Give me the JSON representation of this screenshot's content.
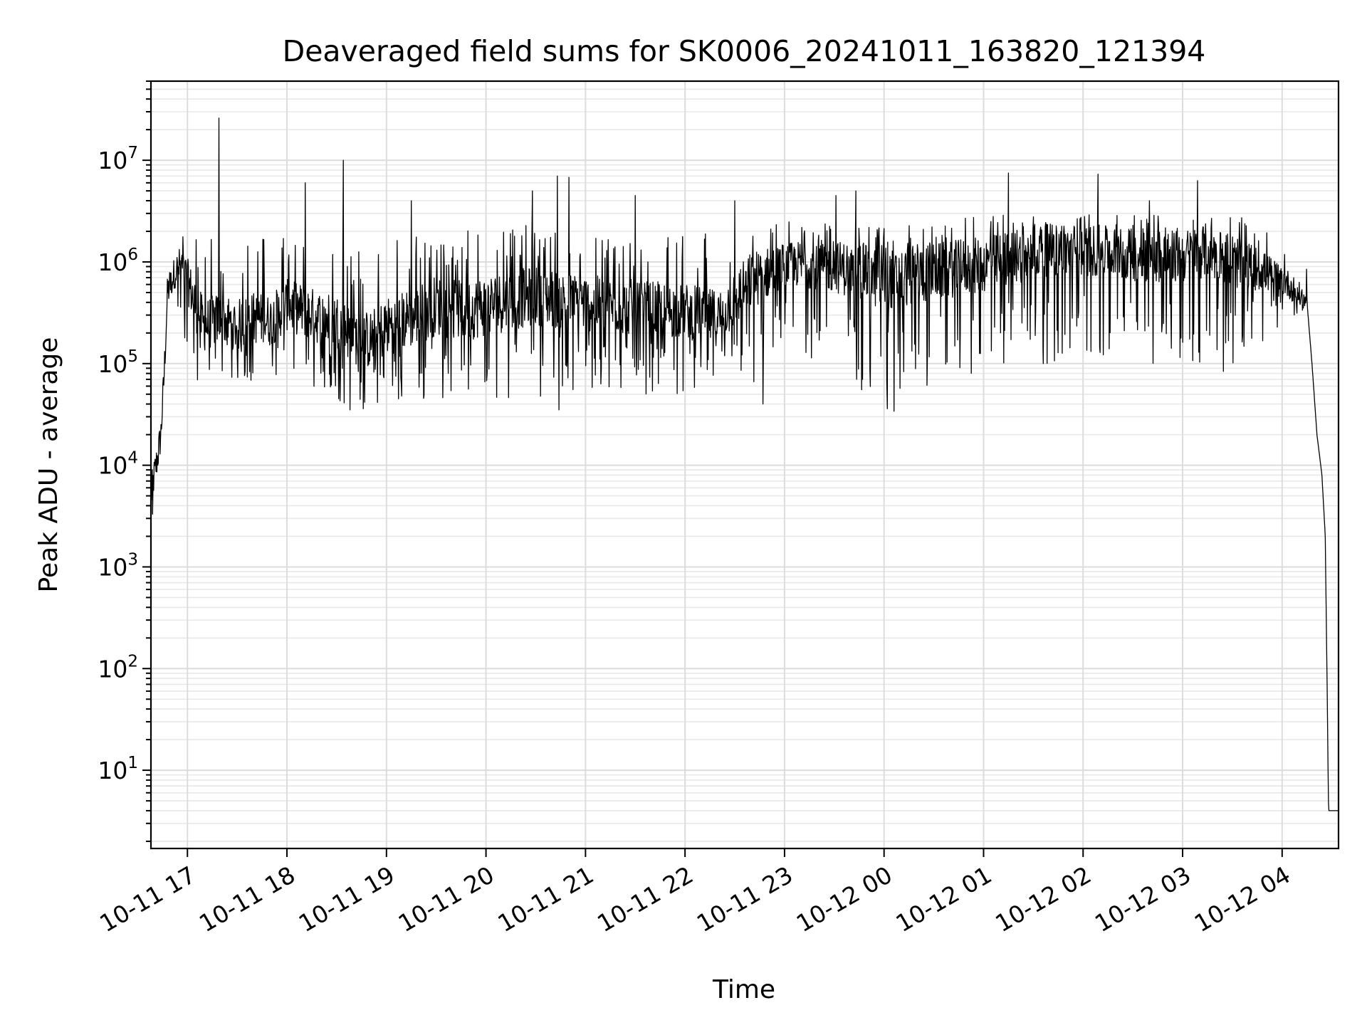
{
  "chart_data": {
    "type": "line",
    "title": "Deaveraged field sums for SK0006_20241011_163820_121394",
    "xlabel": "Time",
    "ylabel": "Peak ADU - average",
    "y_scale": "log",
    "grid": "on (major and minor)",
    "line_color": "#000000",
    "xlim": [
      "2024-10-11 16:38",
      "2024-10-12 04:34"
    ],
    "ylim": [
      1.7,
      60000000
    ],
    "x_ticks": [
      {
        "t": "2024-10-11 17:00",
        "label": "10-11 17"
      },
      {
        "t": "2024-10-11 18:00",
        "label": "10-11 18"
      },
      {
        "t": "2024-10-11 19:00",
        "label": "10-11 19"
      },
      {
        "t": "2024-10-11 20:00",
        "label": "10-11 20"
      },
      {
        "t": "2024-10-11 21:00",
        "label": "10-11 21"
      },
      {
        "t": "2024-10-11 22:00",
        "label": "10-11 22"
      },
      {
        "t": "2024-10-11 23:00",
        "label": "10-11 23"
      },
      {
        "t": "2024-10-12 00:00",
        "label": "10-12 00"
      },
      {
        "t": "2024-10-12 01:00",
        "label": "10-12 01"
      },
      {
        "t": "2024-10-12 02:00",
        "label": "10-12 02"
      },
      {
        "t": "2024-10-12 03:00",
        "label": "10-12 03"
      },
      {
        "t": "2024-10-12 04:00",
        "label": "10-12 04"
      }
    ],
    "y_ticks": [
      {
        "value": 10,
        "base": "10",
        "exp": "1"
      },
      {
        "value": 100,
        "base": "10",
        "exp": "2"
      },
      {
        "value": 1000,
        "base": "10",
        "exp": "3"
      },
      {
        "value": 10000,
        "base": "10",
        "exp": "4"
      },
      {
        "value": 100000,
        "base": "10",
        "exp": "5"
      },
      {
        "value": 1000000,
        "base": "10",
        "exp": "6"
      },
      {
        "value": 10000000,
        "base": "10",
        "exp": "7"
      }
    ],
    "series": [
      {
        "points": [
          [
            "2024-10-11 16:38",
            5000
          ],
          [
            "2024-10-11 16:40",
            8000
          ],
          [
            "2024-10-11 16:42",
            12000
          ],
          [
            "2024-10-11 16:44",
            20000
          ],
          [
            "2024-10-11 16:46",
            80000
          ],
          [
            "2024-10-11 16:48",
            500000
          ],
          [
            "2024-10-11 16:52",
            800000
          ],
          [
            "2024-10-11 16:56",
            1000000
          ],
          [
            "2024-10-11 17:00",
            700000
          ],
          [
            "2024-10-11 17:05",
            400000
          ],
          [
            "2024-10-11 17:10",
            250000
          ],
          [
            "2024-10-11 17:20",
            300000
          ],
          [
            "2024-10-11 17:30",
            250000
          ],
          [
            "2024-10-11 17:40",
            300000
          ],
          [
            "2024-10-11 17:50",
            280000
          ],
          [
            "2024-10-11 18:00",
            400000
          ],
          [
            "2024-10-11 18:10",
            350000
          ],
          [
            "2024-10-11 18:20",
            300000
          ],
          [
            "2024-10-11 18:30",
            280000
          ],
          [
            "2024-10-11 18:40",
            200000
          ],
          [
            "2024-10-11 18:50",
            180000
          ],
          [
            "2024-10-11 19:00",
            250000
          ],
          [
            "2024-10-11 19:15",
            300000
          ],
          [
            "2024-10-11 19:30",
            400000
          ],
          [
            "2024-10-11 19:45",
            350000
          ],
          [
            "2024-10-11 20:00",
            400000
          ],
          [
            "2024-10-11 20:15",
            450000
          ],
          [
            "2024-10-11 20:30",
            500000
          ],
          [
            "2024-10-11 20:45",
            450000
          ],
          [
            "2024-10-11 21:00",
            420000
          ],
          [
            "2024-10-11 21:15",
            400000
          ],
          [
            "2024-10-11 21:30",
            380000
          ],
          [
            "2024-10-11 21:45",
            360000
          ],
          [
            "2024-10-11 22:00",
            350000
          ],
          [
            "2024-10-11 22:20",
            300000
          ],
          [
            "2024-10-11 22:40",
            700000
          ],
          [
            "2024-10-11 23:00",
            1000000
          ],
          [
            "2024-10-11 23:20",
            1000000
          ],
          [
            "2024-10-11 23:40",
            900000
          ],
          [
            "2024-10-12 00:00",
            700000
          ],
          [
            "2024-10-12 00:20",
            800000
          ],
          [
            "2024-10-12 00:40",
            900000
          ],
          [
            "2024-10-12 01:00",
            1000000
          ],
          [
            "2024-10-12 01:20",
            1200000
          ],
          [
            "2024-10-12 01:40",
            1400000
          ],
          [
            "2024-10-12 02:00",
            1400000
          ],
          [
            "2024-10-12 02:20",
            1300000
          ],
          [
            "2024-10-12 02:40",
            1200000
          ],
          [
            "2024-10-12 03:00",
            1200000
          ],
          [
            "2024-10-12 03:15",
            1400000
          ],
          [
            "2024-10-12 03:30",
            1100000
          ],
          [
            "2024-10-12 03:45",
            900000
          ],
          [
            "2024-10-12 04:00",
            700000
          ],
          [
            "2024-10-12 04:10",
            500000
          ],
          [
            "2024-10-12 04:15",
            400000
          ],
          [
            "2024-10-12 04:18",
            100000
          ],
          [
            "2024-10-12 04:21",
            20000
          ],
          [
            "2024-10-12 04:24",
            8000
          ],
          [
            "2024-10-12 04:26",
            2000
          ],
          [
            "2024-10-12 04:27",
            100
          ],
          [
            "2024-10-12 04:28",
            4
          ],
          [
            "2024-10-12 04:34",
            4
          ]
        ],
        "band_low": [
          [
            "2024-10-11 16:50",
            400000
          ],
          [
            "2024-10-11 17:05",
            60000
          ],
          [
            "2024-10-11 18:00",
            70000
          ],
          [
            "2024-10-11 18:30",
            40000
          ],
          [
            "2024-10-11 19:00",
            40000
          ],
          [
            "2024-10-11 20:00",
            45000
          ],
          [
            "2024-10-11 21:00",
            50000
          ],
          [
            "2024-10-11 22:00",
            50000
          ],
          [
            "2024-10-11 22:40",
            50000
          ],
          [
            "2024-10-11 23:00",
            150000
          ],
          [
            "2024-10-12 00:00",
            40000
          ],
          [
            "2024-10-12 00:30",
            60000
          ],
          [
            "2024-10-12 01:00",
            80000
          ],
          [
            "2024-10-12 01:30",
            100000
          ],
          [
            "2024-10-12 02:00",
            100000
          ],
          [
            "2024-10-12 03:00",
            100000
          ],
          [
            "2024-10-12 03:30",
            80000
          ],
          [
            "2024-10-12 04:00",
            250000
          ],
          [
            "2024-10-12 04:15",
            300000
          ]
        ],
        "band_high": [
          [
            "2024-10-11 16:50",
            2500000
          ],
          [
            "2024-10-11 17:05",
            1800000
          ],
          [
            "2024-10-11 18:00",
            2000000
          ],
          [
            "2024-10-11 18:30",
            1500000
          ],
          [
            "2024-10-11 19:00",
            1800000
          ],
          [
            "2024-10-11 20:00",
            2500000
          ],
          [
            "2024-10-11 21:00",
            2000000
          ],
          [
            "2024-10-11 22:00",
            1800000
          ],
          [
            "2024-10-11 22:40",
            2200000
          ],
          [
            "2024-10-11 23:00",
            2500000
          ],
          [
            "2024-10-12 00:00",
            2200000
          ],
          [
            "2024-10-12 00:30",
            2500000
          ],
          [
            "2024-10-12 01:00",
            3000000
          ],
          [
            "2024-10-12 01:30",
            3000000
          ],
          [
            "2024-10-12 02:00",
            3000000
          ],
          [
            "2024-10-12 03:00",
            3000000
          ],
          [
            "2024-10-12 03:30",
            3000000
          ],
          [
            "2024-10-12 04:00",
            1800000
          ],
          [
            "2024-10-12 04:15",
            1200000
          ]
        ],
        "spikes": [
          [
            "2024-10-11 17:19",
            26000000
          ],
          [
            "2024-10-11 18:34",
            10000000
          ],
          [
            "2024-10-11 18:11",
            6000000
          ],
          [
            "2024-10-11 20:28",
            5000000
          ],
          [
            "2024-10-11 20:43",
            7000000
          ],
          [
            "2024-10-11 20:50",
            6800000
          ],
          [
            "2024-10-11 22:30",
            4000000
          ],
          [
            "2024-10-11 23:43",
            5000000
          ],
          [
            "2024-10-11 23:31",
            4500000
          ],
          [
            "2024-10-12 01:15",
            7500000
          ],
          [
            "2024-10-12 02:09",
            7300000
          ],
          [
            "2024-10-12 03:09",
            6300000
          ],
          [
            "2024-10-12 02:40",
            4000000
          ],
          [
            "2024-10-11 19:15",
            4000000
          ],
          [
            "2024-10-11 21:30",
            4500000
          ]
        ],
        "dips": [
          [
            "2024-10-11 16:39",
            3300
          ],
          [
            "2024-10-11 18:38",
            35000
          ],
          [
            "2024-10-11 18:46",
            36000
          ],
          [
            "2024-10-11 20:44",
            35000
          ],
          [
            "2024-10-12 00:06",
            34000
          ],
          [
            "2024-10-12 00:02",
            36000
          ],
          [
            "2024-10-11 22:47",
            40000
          ],
          [
            "2024-10-12 01:36",
            100000
          ]
        ]
      }
    ]
  }
}
